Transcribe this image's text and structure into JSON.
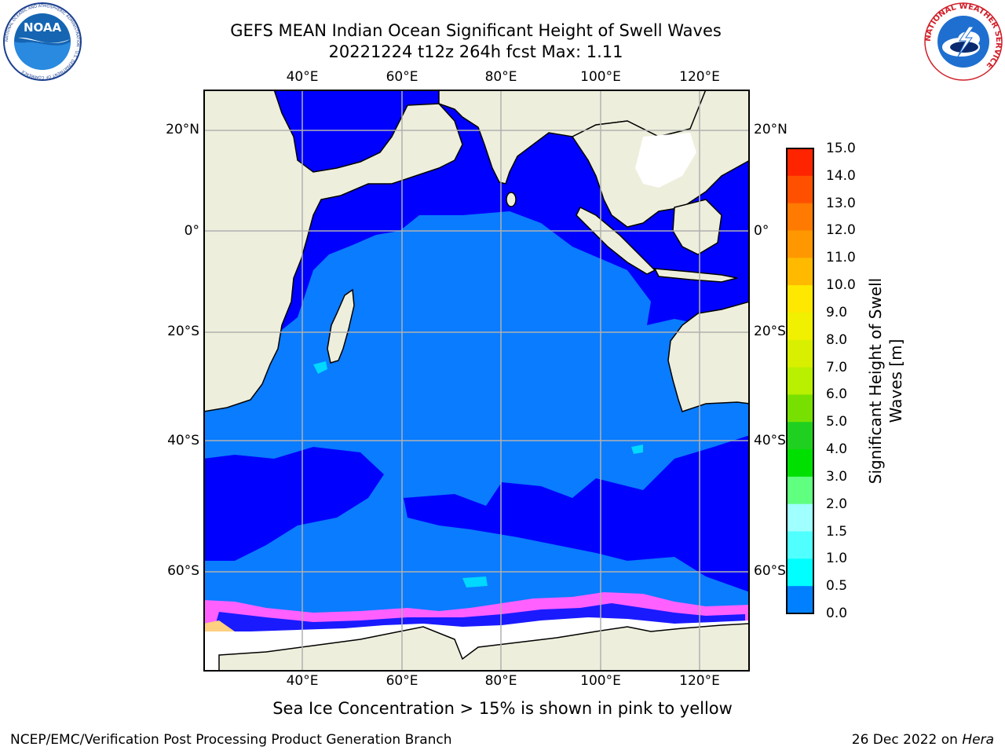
{
  "title": {
    "line1": "GEFS MEAN Indian Ocean Significant Height of Swell Waves",
    "line2": "20221224 t12z 264h fcst   Max: 1.11"
  },
  "map": {
    "lon_labels": [
      "40°E",
      "60°E",
      "80°E",
      "100°E",
      "120°E"
    ],
    "lat_labels": [
      "20°N",
      "0°",
      "20°S",
      "40°S",
      "60°S"
    ],
    "colors": {
      "land": "#eeeedc",
      "ocean_low": "#0000ff",
      "ocean_mid": "#0a7cff",
      "ice": "#ffffff",
      "grid": "#b0b0b0"
    }
  },
  "colorbar": {
    "title_line1": "Significant Height of Swell",
    "title_line2": "Waves [m]",
    "ticks": [
      "15.0",
      "14.0",
      "13.0",
      "12.0",
      "11.0",
      "10.0",
      "9.0",
      "8.0",
      "7.0",
      "6.0",
      "5.0",
      "4.0",
      "3.0",
      "2.0",
      "1.5",
      "1.0",
      "0.5",
      "0.0"
    ],
    "bands": [
      "#ff0000",
      "#ff2400",
      "#ff5000",
      "#ff7a00",
      "#ff9800",
      "#ffba00",
      "#ffe800",
      "#f0f000",
      "#d8f000",
      "#b8f000",
      "#78e000",
      "#20d020",
      "#00e000",
      "#60ff80",
      "#a0ffff",
      "#50ffff",
      "#00ffff",
      "#0080ff",
      "#0000ff"
    ]
  },
  "footnote": "Sea Ice Concentration > 15% is shown in pink to yellow",
  "credit": "NCEP/EMC/Verification Post Processing Product Generation Branch",
  "date": {
    "text": "26 Dec 2022 on ",
    "host": "Hera"
  },
  "logos": {
    "noaa_text": "NOAA",
    "noaa_ring": "NATIONAL OCEANIC AND ATMOSPHERIC ADMINISTRATION · U.S. DEPARTMENT OF COMMERCE",
    "nws_ring": "NATIONAL WEATHER SERVICE"
  }
}
